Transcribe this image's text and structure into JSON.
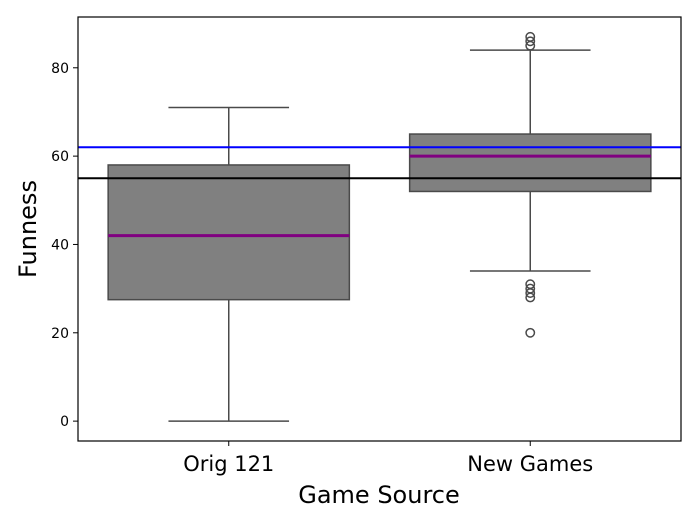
{
  "chart_data": {
    "type": "box",
    "xlabel": "Game Source",
    "ylabel": "Funness",
    "categories": [
      "Orig 121",
      "New Games"
    ],
    "boxes": [
      {
        "category": "Orig 121",
        "whisker_low": 0,
        "q1": 27.5,
        "median": 42,
        "q3": 58,
        "whisker_high": 71,
        "outliers": []
      },
      {
        "category": "New Games",
        "whisker_low": 34,
        "q1": 52,
        "median": 60,
        "q3": 65,
        "whisker_high": 84,
        "outliers": [
          87,
          86,
          85,
          31,
          30,
          29,
          28,
          20
        ]
      }
    ],
    "reference_lines": [
      {
        "value": 62,
        "color": "#0000ff"
      },
      {
        "value": 55,
        "color": "#000000"
      }
    ],
    "ylim": [
      -4.5,
      91.5
    ],
    "yticks": [
      0,
      20,
      40,
      60,
      80
    ],
    "box_color": "#808080",
    "median_color": "#800080",
    "line_color": "#4a4a4a",
    "grid": false,
    "legend": "none"
  }
}
